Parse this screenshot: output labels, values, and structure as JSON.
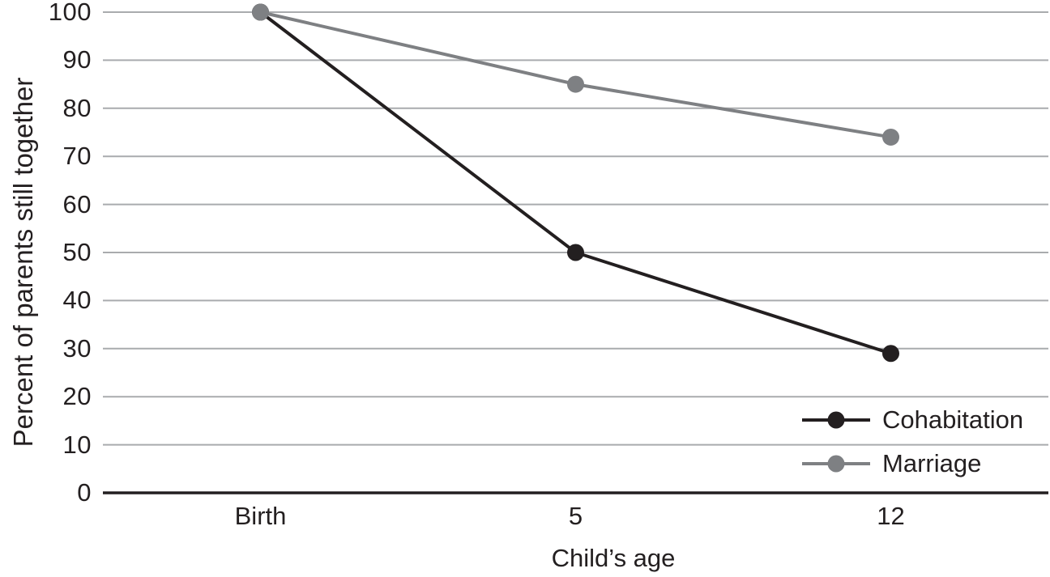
{
  "chart_data": {
    "type": "line",
    "categories": [
      "Birth",
      "5",
      "12"
    ],
    "series": [
      {
        "name": "Cohabitation",
        "color": "#231f20",
        "values": [
          100,
          50,
          29
        ]
      },
      {
        "name": "Marriage",
        "color": "#7e8083",
        "values": [
          100,
          85,
          74
        ]
      }
    ],
    "title": "",
    "xlabel": "Child’s age",
    "ylabel": "Percent of parents still together",
    "ylim": [
      0,
      100
    ],
    "yticks": [
      0,
      10,
      20,
      30,
      40,
      50,
      60,
      70,
      80,
      90,
      100
    ],
    "grid": true,
    "legend_position": "inside-bottom-right",
    "gridline_color": "#a9abae",
    "axis_color": "#231f20",
    "text_color": "#231f20",
    "background_color": "#ffffff"
  }
}
